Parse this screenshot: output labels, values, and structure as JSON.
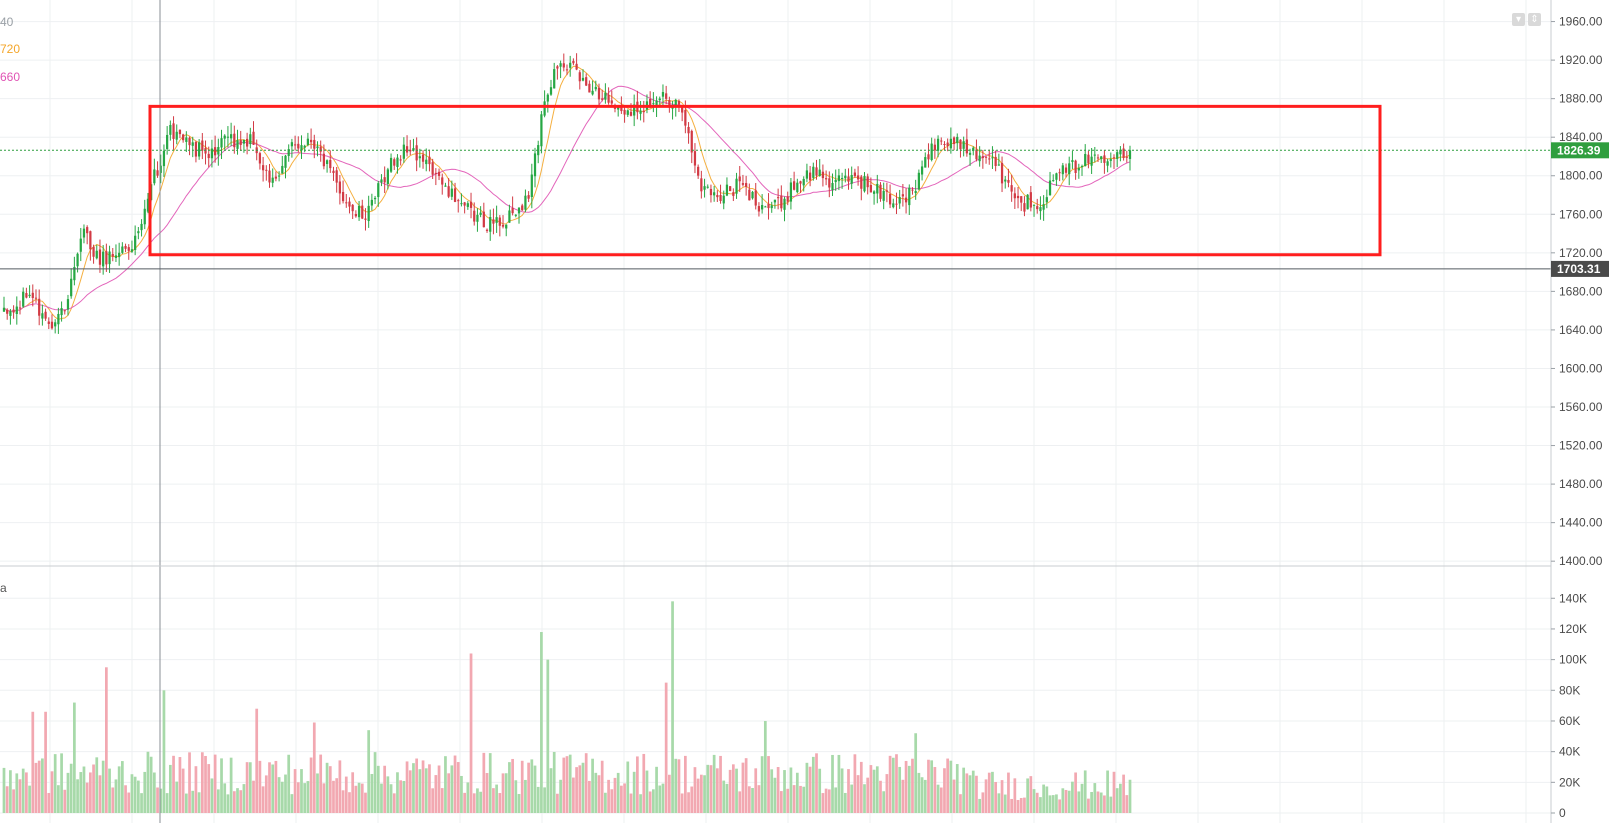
{
  "legends": {
    "ma1": "40",
    "ma2": "720",
    "ma3": "660",
    "volume": "a",
    "colors": {
      "ma1": "#9aa0a6",
      "ma2": "#f4a62a",
      "ma3": "#e054b4"
    }
  },
  "controls": {
    "collapse_icon": "chevron-down-icon",
    "resize_icon": "expand-vertical-icon"
  },
  "price_axis": {
    "ticks": [
      "1960.00",
      "1920.00",
      "1880.00",
      "1840.00",
      "1800.00",
      "1760.00",
      "1720.00",
      "1680.00",
      "1640.00",
      "1600.00",
      "1560.00",
      "1520.00",
      "1480.00",
      "1440.00",
      "1400.00"
    ],
    "current_price": "1826.39",
    "crosshair_price": "1703.31"
  },
  "volume_axis": {
    "ticks": [
      "140K",
      "120K",
      "100K",
      "80K",
      "60K",
      "40K",
      "20K",
      "0"
    ]
  },
  "colors": {
    "up": "#26a744",
    "down": "#d23a44",
    "vol_up": "#a7d9a9",
    "vol_down": "#f2a8b1",
    "range_box": "#ff1e1e",
    "current_price_badge": "#2f9e3e",
    "crosshair_badge": "#4a4a4a"
  },
  "chart_data": {
    "type": "candlestick",
    "price_ylim": [
      1395,
      1972
    ],
    "volume_ylim": [
      0,
      148000
    ],
    "current_price": 1826.39,
    "crosshair_price": 1703.31,
    "range_box": {
      "low": 1718,
      "high": 1872
    },
    "anchors": [
      [
        0,
        1655
      ],
      [
        4,
        1662
      ],
      [
        8,
        1680
      ],
      [
        12,
        1655
      ],
      [
        16,
        1648
      ],
      [
        20,
        1672
      ],
      [
        25,
        1740
      ],
      [
        30,
        1712
      ],
      [
        36,
        1722
      ],
      [
        42,
        1735
      ],
      [
        47,
        1800
      ],
      [
        52,
        1845
      ],
      [
        58,
        1830
      ],
      [
        64,
        1822
      ],
      [
        70,
        1835
      ],
      [
        78,
        1835
      ],
      [
        83,
        1790
      ],
      [
        90,
        1830
      ],
      [
        96,
        1840
      ],
      [
        104,
        1790
      ],
      [
        110,
        1760
      ],
      [
        114,
        1760
      ],
      [
        120,
        1810
      ],
      [
        126,
        1828
      ],
      [
        132,
        1810
      ],
      [
        138,
        1790
      ],
      [
        146,
        1760
      ],
      [
        152,
        1750
      ],
      [
        158,
        1755
      ],
      [
        164,
        1776
      ],
      [
        169,
        1880
      ],
      [
        174,
        1925
      ],
      [
        180,
        1900
      ],
      [
        186,
        1888
      ],
      [
        192,
        1868
      ],
      [
        198,
        1872
      ],
      [
        204,
        1878
      ],
      [
        210,
        1880
      ],
      [
        214,
        1840
      ],
      [
        218,
        1790
      ],
      [
        224,
        1780
      ],
      [
        230,
        1790
      ],
      [
        236,
        1770
      ],
      [
        242,
        1768
      ],
      [
        248,
        1795
      ],
      [
        254,
        1805
      ],
      [
        260,
        1790
      ],
      [
        266,
        1800
      ],
      [
        272,
        1785
      ],
      [
        278,
        1775
      ],
      [
        284,
        1782
      ],
      [
        290,
        1828
      ],
      [
        296,
        1840
      ],
      [
        302,
        1830
      ],
      [
        308,
        1818
      ],
      [
        314,
        1790
      ],
      [
        318,
        1770
      ],
      [
        324,
        1775
      ],
      [
        330,
        1800
      ],
      [
        336,
        1812
      ],
      [
        342,
        1820
      ],
      [
        348,
        1826
      ],
      [
        352,
        1826
      ]
    ],
    "volume_spikes": [
      [
        9,
        66000
      ],
      [
        13,
        66000
      ],
      [
        22,
        72000
      ],
      [
        32,
        95000
      ],
      [
        50,
        80000
      ],
      [
        79,
        68000
      ],
      [
        97,
        59000
      ],
      [
        114,
        54000
      ],
      [
        146,
        104000
      ],
      [
        168,
        118000
      ],
      [
        170,
        100000
      ],
      [
        207,
        85000
      ],
      [
        209,
        138000
      ],
      [
        238,
        60000
      ],
      [
        285,
        52000
      ]
    ]
  }
}
